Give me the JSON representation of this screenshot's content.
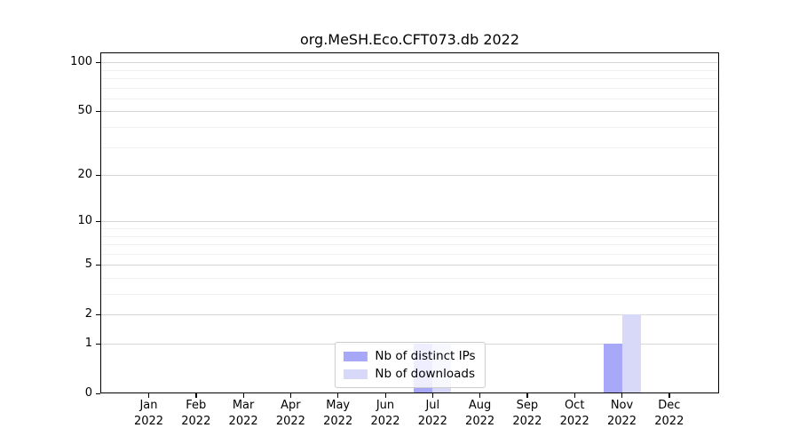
{
  "chart_data": {
    "type": "bar",
    "title": "org.MeSH.Eco.CFT073.db 2022",
    "x_categories": [
      "Jan",
      "Feb",
      "Mar",
      "Apr",
      "May",
      "Jun",
      "Jul",
      "Aug",
      "Sep",
      "Oct",
      "Nov",
      "Dec"
    ],
    "x_year": "2022",
    "series": [
      {
        "name": "Nb of distinct IPs",
        "color": "#a8a8f8",
        "values": [
          0,
          0,
          0,
          0,
          0,
          0,
          1,
          0,
          0,
          0,
          1,
          0
        ]
      },
      {
        "name": "Nb of downloads",
        "color": "#d8d8f8",
        "values": [
          0,
          0,
          0,
          0,
          0,
          0,
          1,
          0,
          0,
          0,
          2,
          0
        ]
      }
    ],
    "y_scale": "log1p",
    "y_ticks": [
      0,
      1,
      2,
      5,
      10,
      20,
      50,
      100
    ],
    "y_minor_gridlines": [
      3,
      4,
      6,
      7,
      8,
      9,
      30,
      40,
      60,
      70,
      80,
      90
    ],
    "ylim": [
      0,
      115
    ],
    "xlabel": "",
    "ylabel": "",
    "grid": true,
    "legend_position": "lower center"
  },
  "colors": {
    "major_grid": "#d6d6d6",
    "minor_grid": "#f1f1f1",
    "spine": "#000000",
    "background": "#ffffff",
    "text": "#000000"
  }
}
